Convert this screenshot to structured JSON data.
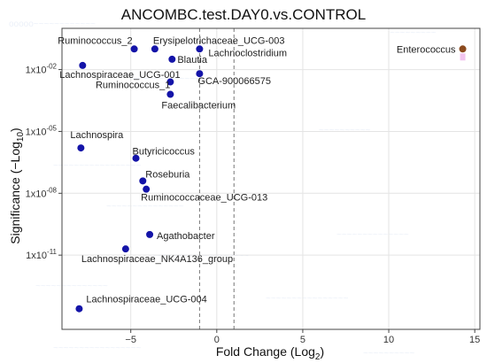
{
  "chart_data": {
    "type": "scatter",
    "title": "ANCOMBC.test.DAY0.vs.CONTROL",
    "xlabel": "Fold Change (Log",
    "xlabel_sub": "2",
    "xlabel_close": ")",
    "ylabel": "Significance (−Log",
    "ylabel_sub": "10",
    "ylabel_close": ")",
    "xlim": [
      -9.0,
      15.3
    ],
    "x_ticks": [
      -5,
      0,
      5,
      10,
      15
    ],
    "y_ticks": [
      {
        "label": "1x10",
        "exp": "-02",
        "value": 2
      },
      {
        "label": "1x10",
        "exp": "-05",
        "value": 5
      },
      {
        "label": "1x10",
        "exp": "-08",
        "value": 8
      },
      {
        "label": "1x10",
        "exp": "-11",
        "value": 11
      }
    ],
    "thresholds_x": [
      -1,
      1
    ],
    "colors": {
      "decreased": "#1414a8",
      "increased": "#8b4a1e",
      "grid": "#e4e4e4",
      "threshold": "#777777",
      "frame": "#444444"
    },
    "points": [
      {
        "label": "Ruminococcus_2",
        "x": -4.8,
        "y": 1.0,
        "group": "decreased"
      },
      {
        "label": "Erysipelotrichaceae_UCG-003",
        "x": -3.6,
        "y": 1.0,
        "group": "decreased"
      },
      {
        "label": "Blautia",
        "x": -2.6,
        "y": 1.5,
        "group": "decreased"
      },
      {
        "label": "Lachnoclostridium",
        "x": -1.0,
        "y": 1.0,
        "group": "decreased"
      },
      {
        "label": "Lachnospiraceae_UCG-001",
        "x": -7.8,
        "y": 1.8,
        "group": "decreased"
      },
      {
        "label": "Ruminococcus_1",
        "x": -2.7,
        "y": 2.6,
        "group": "decreased"
      },
      {
        "label": "GCA-900066575",
        "x": -1.0,
        "y": 2.2,
        "group": "decreased"
      },
      {
        "label": "Faecalibacterium",
        "x": -2.7,
        "y": 3.2,
        "group": "decreased"
      },
      {
        "label": "Lachnospira",
        "x": -7.9,
        "y": 5.8,
        "group": "decreased"
      },
      {
        "label": "Butyricicoccus",
        "x": -4.7,
        "y": 6.3,
        "group": "decreased"
      },
      {
        "label": "Roseburia",
        "x": -4.3,
        "y": 7.4,
        "group": "decreased"
      },
      {
        "label": "Ruminococcaceae_UCG-013",
        "x": -4.1,
        "y": 7.8,
        "group": "decreased"
      },
      {
        "label": "Agathobacter",
        "x": -3.9,
        "y": 10.0,
        "group": "decreased"
      },
      {
        "label": "Lachnospiraceae_NK4A136_group",
        "x": -5.3,
        "y": 10.7,
        "group": "decreased"
      },
      {
        "label": "Lachnospiraceae_UCG-004",
        "x": -8.0,
        "y": 13.6,
        "group": "decreased"
      },
      {
        "label": "Enterococcus",
        "x": 14.3,
        "y": 1.0,
        "group": "increased"
      }
    ]
  }
}
